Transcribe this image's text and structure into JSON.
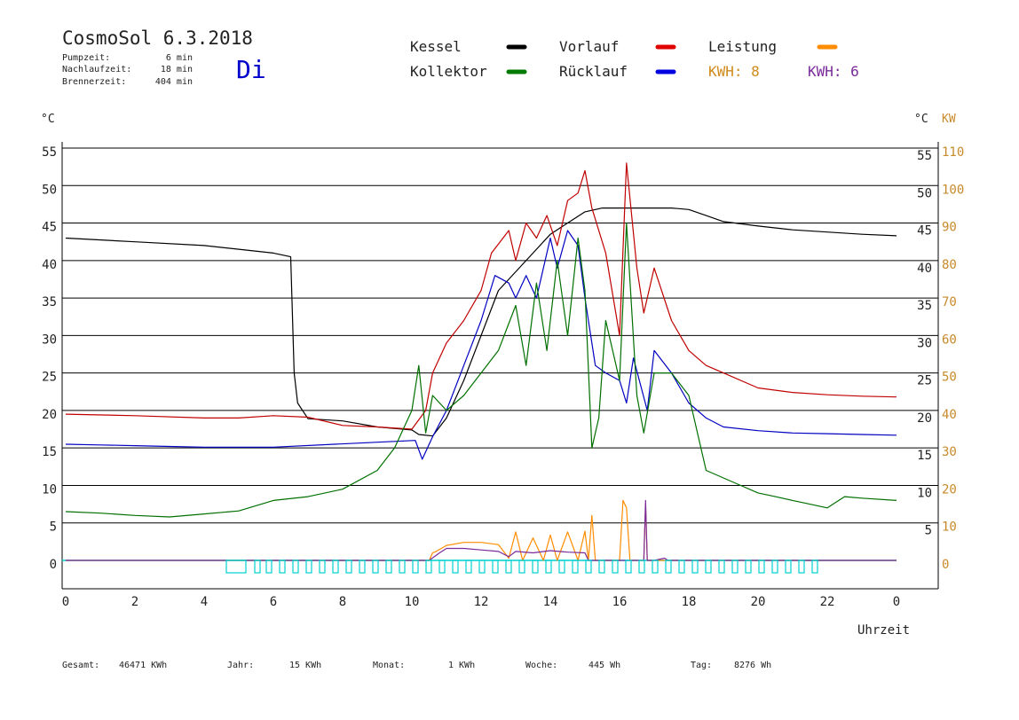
{
  "header": {
    "title": "CosmoSol 6.3.2018",
    "day": "Di",
    "stats": [
      {
        "label": "Pumpzeit:",
        "value": "6 min"
      },
      {
        "label": "Nachlaufzeit:",
        "value": "18 min"
      },
      {
        "label": "Brennerzeit:",
        "value": "404 min"
      }
    ]
  },
  "legend": {
    "items": [
      {
        "label": "Kessel",
        "color": "#000000"
      },
      {
        "label": "Vorlauf",
        "color": "#e00000"
      },
      {
        "label": "Leistung",
        "color": "#ff8c00"
      },
      {
        "label": "Kollektor",
        "color": "#007a00"
      },
      {
        "label": "Rücklauf",
        "color": "#0000e0"
      }
    ],
    "kwh": [
      {
        "label": "KWH: 8",
        "color": "#d08a1a"
      },
      {
        "label": "KWH: 6",
        "color": "#7a2a9a"
      }
    ]
  },
  "footer": [
    {
      "label": "Gesamt:",
      "value": "46471 KWh"
    },
    {
      "label": "Jahr:",
      "value": "15 KWh"
    },
    {
      "label": "Monat:",
      "value": "1 KWh"
    },
    {
      "label": "Woche:",
      "value": "445 Wh"
    },
    {
      "label": "Tag:",
      "value": "8276 Wh"
    }
  ],
  "colors": {
    "kessel": "#000000",
    "vorlauf": "#c00000",
    "ruecklauf": "#0000c0",
    "kollektor": "#007000",
    "leistung": "#ff8c00",
    "kwh2": "#7a2a9a",
    "cyan": "#00d0d0",
    "axis_right": "#c88a2a",
    "day": "#0000cc"
  },
  "chart_data": {
    "type": "line",
    "xlabel": "Uhrzeit",
    "ylabel_left": "°C",
    "ylabel_right_temp": "°C",
    "ylabel_right_power": "KW",
    "xlim": [
      0,
      24
    ],
    "ylim": [
      0,
      55
    ],
    "y2lim": [
      0,
      110
    ],
    "grid": true,
    "x_ticks": [
      "0",
      "2",
      "4",
      "6",
      "8",
      "10",
      "12",
      "14",
      "16",
      "18",
      "20",
      "22",
      "0"
    ],
    "y_ticks": [
      "0",
      "5",
      "10",
      "15",
      "20",
      "25",
      "30",
      "35",
      "40",
      "45",
      "50",
      "55"
    ],
    "y2_ticks": [
      "0",
      "10",
      "20",
      "30",
      "40",
      "50",
      "60",
      "70",
      "80",
      "90",
      "100",
      "110"
    ],
    "series": [
      {
        "name": "Kessel",
        "x": [
          0,
          2,
          4,
          5,
          6,
          6.5,
          6.6,
          6.7,
          7,
          8,
          9,
          10,
          10.2,
          10.6,
          11,
          11.5,
          12,
          12.5,
          13,
          13.5,
          14,
          14.5,
          15,
          15.5,
          16,
          16.5,
          17,
          17.5,
          18,
          18.5,
          19,
          20,
          21,
          22,
          23,
          24
        ],
        "y": [
          43,
          42.5,
          42,
          41.5,
          41,
          40.5,
          25,
          21,
          18.9,
          18.6,
          17.8,
          17.4,
          16.8,
          16.6,
          19,
          24,
          30,
          36,
          38.5,
          41,
          43.5,
          45,
          46.5,
          47,
          47,
          47,
          47,
          47,
          46.8,
          46,
          45.2,
          44.6,
          44.1,
          43.8,
          43.5,
          43.3
        ]
      },
      {
        "name": "Vorlauf",
        "x": [
          0,
          2,
          4,
          5,
          6,
          7,
          8,
          9,
          10,
          10.4,
          10.6,
          11,
          11.5,
          12,
          12.3,
          12.8,
          13,
          13.3,
          13.6,
          13.9,
          14.2,
          14.5,
          14.8,
          15,
          15.2,
          15.6,
          16,
          16.2,
          16.5,
          16.7,
          17,
          17.5,
          18,
          18.5,
          19,
          20,
          21,
          22,
          23,
          24
        ],
        "y": [
          19.5,
          19.3,
          19,
          19,
          19.3,
          19.1,
          18,
          17.8,
          17.5,
          20,
          25,
          29,
          32,
          36,
          41,
          44,
          40,
          45,
          43,
          46,
          42,
          48,
          49,
          52,
          47,
          41,
          30,
          53,
          39,
          33,
          39,
          32,
          28,
          26,
          25,
          23,
          22.4,
          22.1,
          21.9,
          21.8
        ]
      },
      {
        "name": "Rücklauf",
        "x": [
          0,
          1,
          2,
          3,
          4,
          5,
          6,
          10.1,
          10.3,
          10.6,
          11,
          11.5,
          12,
          12.4,
          12.8,
          13,
          13.3,
          13.6,
          14,
          14.2,
          14.5,
          14.8,
          15,
          15.3,
          15.6,
          16,
          16.2,
          16.4,
          16.8,
          17,
          17.5,
          18,
          18.5,
          19,
          20,
          21,
          22,
          23,
          24
        ],
        "y": [
          15.5,
          15.4,
          15.3,
          15.2,
          15.1,
          15.1,
          15.1,
          16,
          13.5,
          16.5,
          20,
          26,
          32,
          38,
          37,
          35,
          38,
          35,
          43,
          39,
          44,
          42,
          35,
          26,
          25,
          24,
          21,
          27,
          20,
          28,
          25,
          21,
          19,
          17.8,
          17.3,
          17,
          16.9,
          16.8,
          16.7
        ]
      },
      {
        "name": "Kollektor",
        "x": [
          0,
          1,
          2,
          3,
          4,
          5,
          6,
          7,
          8,
          9,
          9.5,
          10,
          10.2,
          10.4,
          10.6,
          11,
          11.5,
          12,
          12.5,
          13,
          13.3,
          13.6,
          13.9,
          14.2,
          14.5,
          14.8,
          15,
          15.2,
          15.4,
          15.6,
          16,
          16.2,
          16.5,
          16.7,
          17,
          17.5,
          18,
          18.5,
          19,
          19.5,
          20,
          20.5,
          21,
          21.5,
          22,
          22.5,
          23,
          24
        ],
        "y": [
          6.5,
          6.3,
          6,
          5.8,
          6.2,
          6.6,
          8,
          8.5,
          9.5,
          12,
          15,
          20,
          26,
          17,
          22,
          20,
          22,
          25,
          28,
          34,
          26,
          37,
          28,
          40,
          30,
          43,
          36,
          15,
          19,
          32,
          24,
          45,
          22,
          17,
          25,
          25,
          22,
          12,
          11,
          10,
          9,
          8.5,
          8,
          7.5,
          7,
          8.5,
          8.3,
          8
        ]
      },
      {
        "name": "Leistung",
        "x": [
          0,
          10.5,
          10.6,
          10.7,
          11,
          11.5,
          12,
          12.5,
          12.8,
          13,
          13.2,
          13.5,
          13.8,
          14,
          14.2,
          14.5,
          14.8,
          15,
          15.1,
          15.2,
          15.3,
          15.5,
          16,
          16.1,
          16.2,
          16.3,
          16.5,
          16.7,
          16.75,
          16.8,
          17,
          24
        ],
        "y": [
          0,
          0,
          1,
          1.2,
          2,
          2.4,
          2.4,
          2.1,
          0.3,
          3.8,
          0,
          3,
          0,
          3.4,
          0,
          3.8,
          0,
          3.9,
          0,
          6,
          0,
          0,
          0,
          8,
          7,
          0,
          0,
          0,
          7.5,
          0,
          0,
          0
        ]
      },
      {
        "name": "KWH 6",
        "x": [
          0,
          10.5,
          10.8,
          11,
          11.5,
          12,
          12.5,
          12.8,
          13,
          13.5,
          14,
          14.5,
          15,
          15.1,
          16,
          16.7,
          16.75,
          16.8,
          17,
          17.3,
          17.4,
          24
        ],
        "y": [
          0,
          0,
          1,
          1.6,
          1.6,
          1.4,
          1.2,
          0.5,
          1.2,
          1,
          1.3,
          1.1,
          1,
          0,
          0,
          0,
          8,
          0,
          0,
          0.3,
          0,
          0
        ]
      }
    ]
  }
}
